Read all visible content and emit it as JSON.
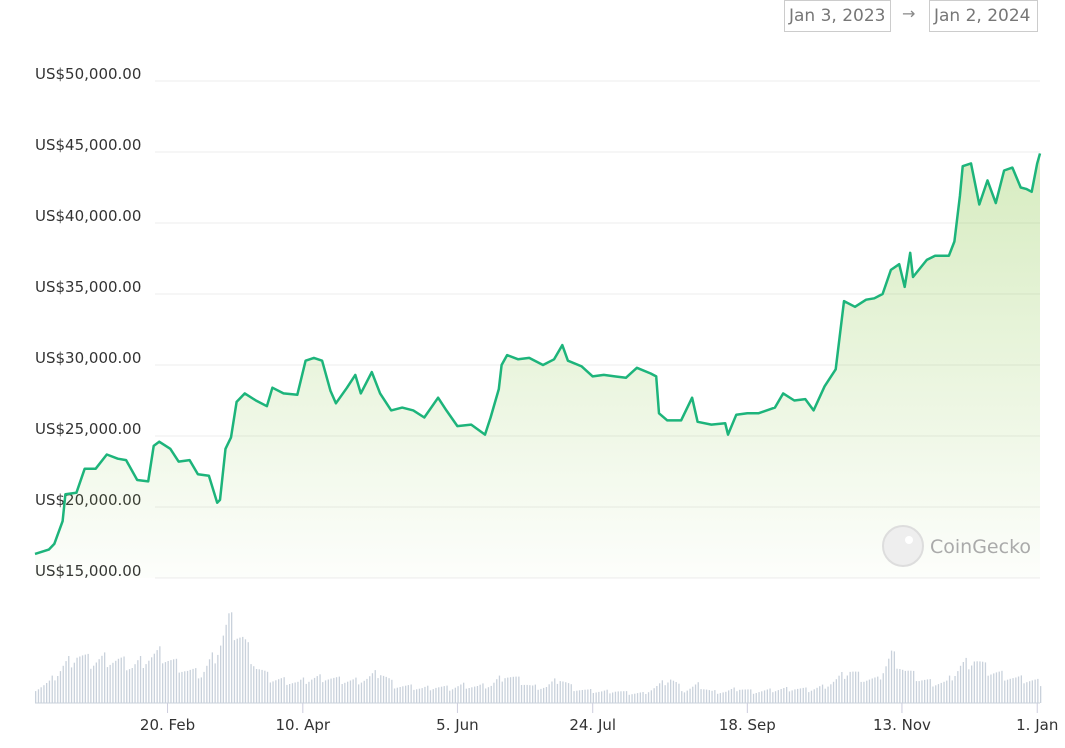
{
  "range_selector": {
    "from": "Jan 3, 2023",
    "arrow": "→",
    "to": "Jan 2, 2024"
  },
  "watermark": {
    "text": "CoinGecko",
    "logo": "coingecko-gecko-logo"
  },
  "colors": {
    "line": "#1db47b",
    "area": "#8cc84b",
    "volume": "#c9d1db",
    "grid": "#ececec"
  },
  "chart_data": {
    "type": "line",
    "title": "",
    "xlabel": "",
    "ylabel": "",
    "ylim": [
      15000,
      50000
    ],
    "xlim": [
      "2023-01-03",
      "2024-01-02"
    ],
    "grid": true,
    "y_ticks": [
      {
        "value": 50000,
        "label": "US$50,000.00"
      },
      {
        "value": 45000,
        "label": "US$45,000.00"
      },
      {
        "value": 40000,
        "label": "US$40,000.00"
      },
      {
        "value": 35000,
        "label": "US$35,000.00"
      },
      {
        "value": 30000,
        "label": "US$30,000.00"
      },
      {
        "value": 25000,
        "label": "US$25,000.00"
      },
      {
        "value": 20000,
        "label": "US$20,000.00"
      },
      {
        "value": 15000,
        "label": "US$15,000.00"
      }
    ],
    "x_ticks": [
      {
        "date": "2023-02-20",
        "label": "20. Feb"
      },
      {
        "date": "2023-04-10",
        "label": "10. Apr"
      },
      {
        "date": "2023-06-05",
        "label": "5. Jun"
      },
      {
        "date": "2023-07-24",
        "label": "24. Jul"
      },
      {
        "date": "2023-09-18",
        "label": "18. Sep"
      },
      {
        "date": "2023-11-13",
        "label": "13. Nov"
      },
      {
        "date": "2024-01-01",
        "label": "1. Jan"
      }
    ],
    "price": [
      [
        "2023-01-03",
        16700
      ],
      [
        "2023-01-08",
        17000
      ],
      [
        "2023-01-10",
        17400
      ],
      [
        "2023-01-13",
        19000
      ],
      [
        "2023-01-14",
        20900
      ],
      [
        "2023-01-18",
        21000
      ],
      [
        "2023-01-21",
        22700
      ],
      [
        "2023-01-25",
        22700
      ],
      [
        "2023-01-29",
        23700
      ],
      [
        "2023-02-02",
        23400
      ],
      [
        "2023-02-05",
        23300
      ],
      [
        "2023-02-09",
        21900
      ],
      [
        "2023-02-13",
        21800
      ],
      [
        "2023-02-15",
        24300
      ],
      [
        "2023-02-17",
        24600
      ],
      [
        "2023-02-21",
        24100
      ],
      [
        "2023-02-24",
        23200
      ],
      [
        "2023-02-28",
        23300
      ],
      [
        "2023-03-03",
        22300
      ],
      [
        "2023-03-07",
        22200
      ],
      [
        "2023-03-10",
        20300
      ],
      [
        "2023-03-11",
        20500
      ],
      [
        "2023-03-13",
        24100
      ],
      [
        "2023-03-15",
        24900
      ],
      [
        "2023-03-17",
        27400
      ],
      [
        "2023-03-20",
        28000
      ],
      [
        "2023-03-24",
        27500
      ],
      [
        "2023-03-28",
        27100
      ],
      [
        "2023-03-30",
        28400
      ],
      [
        "2023-04-03",
        28000
      ],
      [
        "2023-04-08",
        27900
      ],
      [
        "2023-04-11",
        30300
      ],
      [
        "2023-04-14",
        30500
      ],
      [
        "2023-04-17",
        30300
      ],
      [
        "2023-04-20",
        28200
      ],
      [
        "2023-04-22",
        27300
      ],
      [
        "2023-04-26",
        28400
      ],
      [
        "2023-04-29",
        29300
      ],
      [
        "2023-05-01",
        28000
      ],
      [
        "2023-05-05",
        29500
      ],
      [
        "2023-05-08",
        28000
      ],
      [
        "2023-05-12",
        26800
      ],
      [
        "2023-05-16",
        27000
      ],
      [
        "2023-05-20",
        26800
      ],
      [
        "2023-05-24",
        26300
      ],
      [
        "2023-05-29",
        27700
      ],
      [
        "2023-06-01",
        26800
      ],
      [
        "2023-06-05",
        25700
      ],
      [
        "2023-06-10",
        25800
      ],
      [
        "2023-06-15",
        25100
      ],
      [
        "2023-06-17",
        26300
      ],
      [
        "2023-06-20",
        28300
      ],
      [
        "2023-06-21",
        30000
      ],
      [
        "2023-06-23",
        30700
      ],
      [
        "2023-06-27",
        30400
      ],
      [
        "2023-07-01",
        30500
      ],
      [
        "2023-07-06",
        30000
      ],
      [
        "2023-07-10",
        30400
      ],
      [
        "2023-07-13",
        31400
      ],
      [
        "2023-07-15",
        30300
      ],
      [
        "2023-07-20",
        29900
      ],
      [
        "2023-07-24",
        29200
      ],
      [
        "2023-07-28",
        29300
      ],
      [
        "2023-08-01",
        29200
      ],
      [
        "2023-08-05",
        29100
      ],
      [
        "2023-08-09",
        29800
      ],
      [
        "2023-08-14",
        29400
      ],
      [
        "2023-08-16",
        29200
      ],
      [
        "2023-08-17",
        26600
      ],
      [
        "2023-08-20",
        26100
      ],
      [
        "2023-08-25",
        26100
      ],
      [
        "2023-08-29",
        27700
      ],
      [
        "2023-08-31",
        26000
      ],
      [
        "2023-09-05",
        25800
      ],
      [
        "2023-09-10",
        25900
      ],
      [
        "2023-09-11",
        25100
      ],
      [
        "2023-09-14",
        26500
      ],
      [
        "2023-09-18",
        26600
      ],
      [
        "2023-09-22",
        26600
      ],
      [
        "2023-09-28",
        27000
      ],
      [
        "2023-10-01",
        28000
      ],
      [
        "2023-10-05",
        27500
      ],
      [
        "2023-10-09",
        27600
      ],
      [
        "2023-10-12",
        26800
      ],
      [
        "2023-10-16",
        28500
      ],
      [
        "2023-10-20",
        29700
      ],
      [
        "2023-10-23",
        34500
      ],
      [
        "2023-10-27",
        34100
      ],
      [
        "2023-10-31",
        34600
      ],
      [
        "2023-11-03",
        34700
      ],
      [
        "2023-11-06",
        35000
      ],
      [
        "2023-11-09",
        36700
      ],
      [
        "2023-11-12",
        37100
      ],
      [
        "2023-11-14",
        35500
      ],
      [
        "2023-11-16",
        37900
      ],
      [
        "2023-11-17",
        36200
      ],
      [
        "2023-11-22",
        37400
      ],
      [
        "2023-11-25",
        37700
      ],
      [
        "2023-11-30",
        37700
      ],
      [
        "2023-12-02",
        38700
      ],
      [
        "2023-12-04",
        41900
      ],
      [
        "2023-12-05",
        44000
      ],
      [
        "2023-12-08",
        44200
      ],
      [
        "2023-12-11",
        41300
      ],
      [
        "2023-12-14",
        43000
      ],
      [
        "2023-12-17",
        41400
      ],
      [
        "2023-12-20",
        43700
      ],
      [
        "2023-12-23",
        43900
      ],
      [
        "2023-12-26",
        42500
      ],
      [
        "2023-12-28",
        42400
      ],
      [
        "2023-12-30",
        42200
      ],
      [
        "2024-01-01",
        44200
      ],
      [
        "2024-01-02",
        44900
      ]
    ],
    "volume_relative": {
      "start": "2023-01-03",
      "step_days": 5,
      "values": [
        18,
        25,
        45,
        60,
        50,
        55,
        52,
        45,
        55,
        60,
        50,
        40,
        35,
        60,
        100,
        80,
        45,
        30,
        28,
        25,
        30,
        32,
        28,
        27,
        30,
        38,
        22,
        20,
        18,
        20,
        18,
        22,
        20,
        22,
        35,
        28,
        20,
        20,
        30,
        18,
        15,
        14,
        15,
        12,
        12,
        20,
        30,
        15,
        22,
        14,
        14,
        18,
        14,
        15,
        17,
        18,
        16,
        20,
        28,
        40,
        30,
        28,
        60,
        40,
        30,
        25,
        25,
        45,
        55,
        40,
        35,
        30,
        28,
        25
      ]
    }
  }
}
